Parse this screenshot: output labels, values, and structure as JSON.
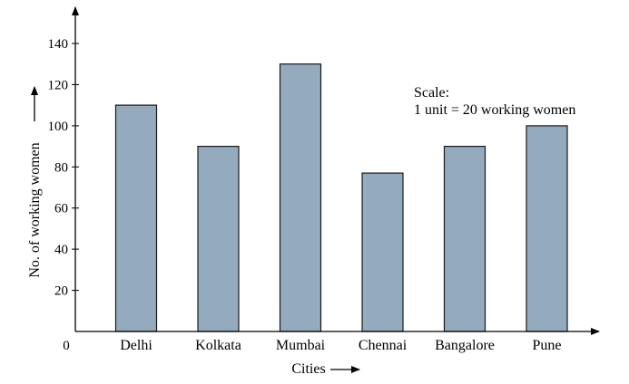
{
  "chart_data": {
    "type": "bar",
    "categories": [
      "Delhi",
      "Kolkata",
      "Mumbai",
      "Chennai",
      "Bangalore",
      "Pune"
    ],
    "values": [
      110,
      90,
      130,
      77,
      90,
      100
    ],
    "title": "",
    "xlabel": "Cities",
    "ylabel": "No. of working women",
    "ylim": [
      0,
      140
    ],
    "yticks": [
      20,
      40,
      60,
      80,
      100,
      120,
      140
    ],
    "origin_label": "0",
    "grid": false,
    "bar_color": "#94abbe",
    "annotation": {
      "line1": "Scale:",
      "line2": "1 unit = 20 working women"
    }
  }
}
